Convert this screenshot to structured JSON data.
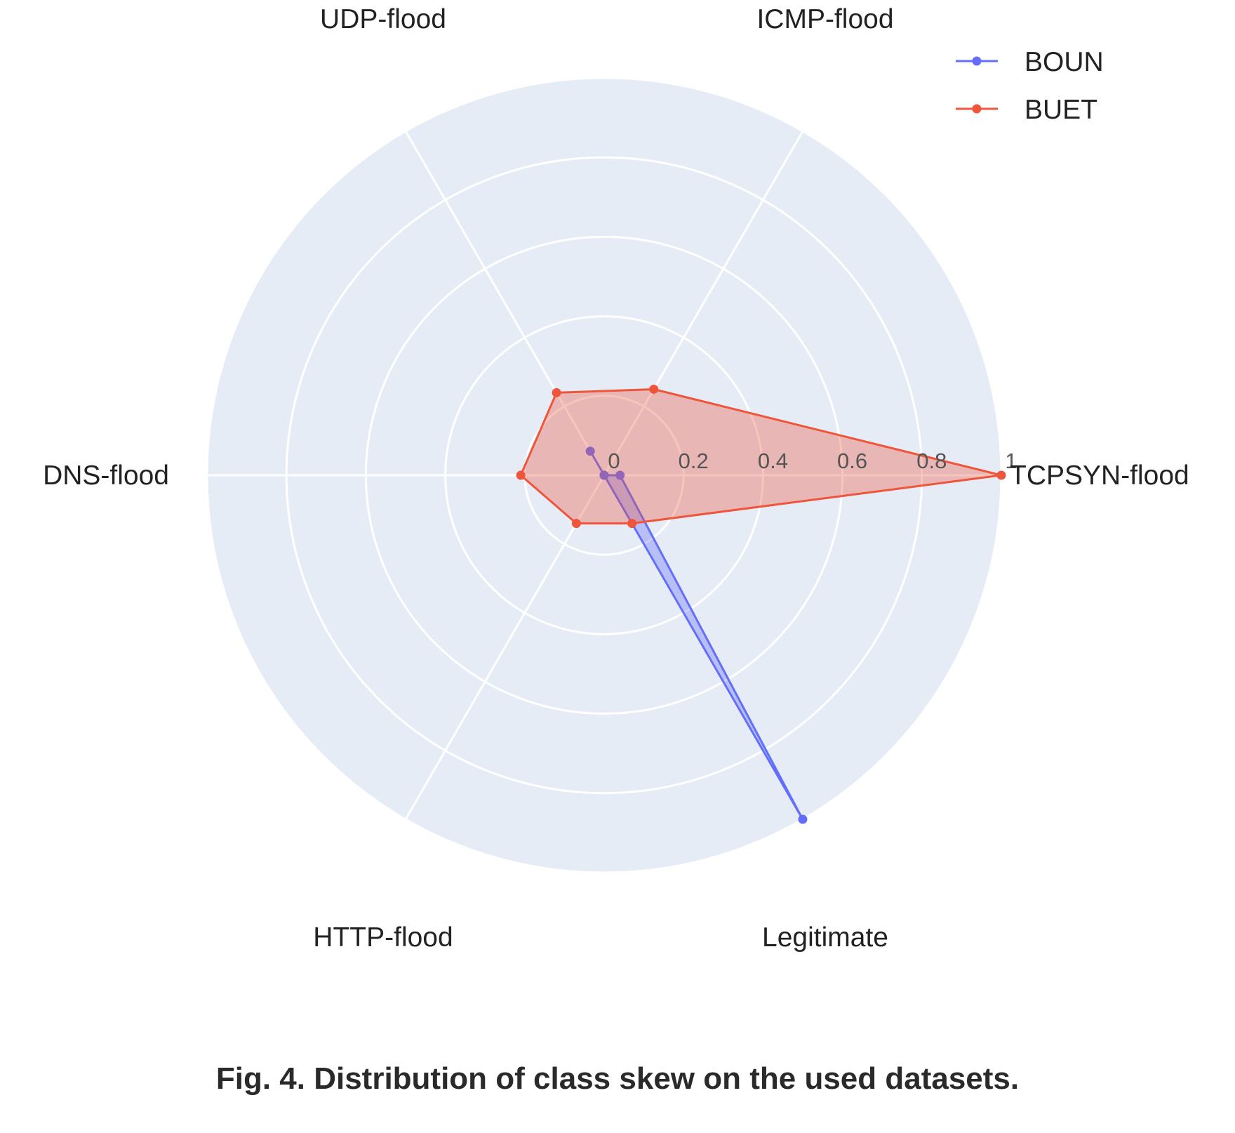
{
  "chart_data": {
    "type": "radar",
    "title": "",
    "categories": [
      "TCPSYN-flood",
      "ICMP-flood",
      "UDP-flood",
      "DNS-flood",
      "HTTP-flood",
      "Legitimate"
    ],
    "radial_axis": {
      "range": [
        0,
        1
      ],
      "ticks": [
        0,
        0.2,
        0.4,
        0.6,
        0.8,
        1
      ],
      "tick_labels": [
        "0",
        "0.2",
        "0.4",
        "0.6",
        "0.8",
        "1"
      ]
    },
    "series": [
      {
        "name": "BOUN",
        "color": "#636efa",
        "values": [
          0.04,
          0.0,
          0.07,
          0.0,
          0.0,
          1.0
        ],
        "fill": "toself"
      },
      {
        "name": "BUET",
        "color": "#ef553b",
        "values": [
          1.0,
          0.25,
          0.24,
          0.21,
          0.14,
          0.14
        ],
        "fill": "toself"
      }
    ],
    "grid": true,
    "plot_background": "#e5ecf6",
    "legend_position": "top-right"
  },
  "caption": "Fig. 4. Distribution of class skew on the used datasets."
}
